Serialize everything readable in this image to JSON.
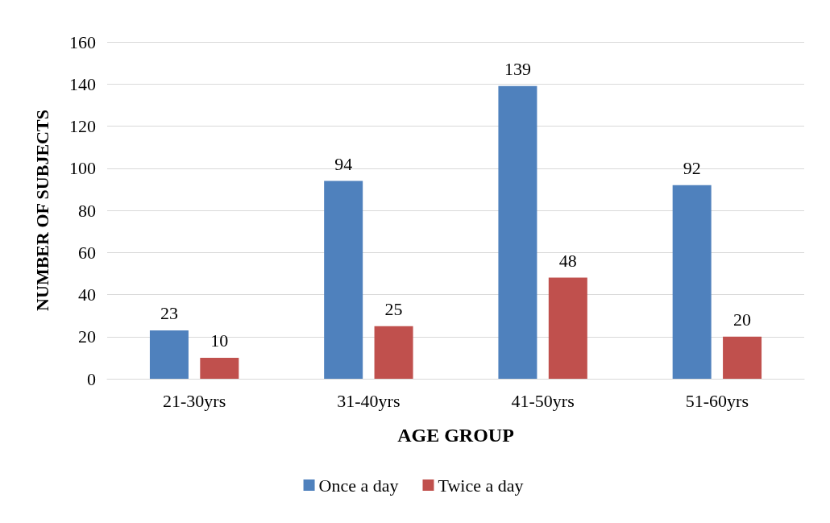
{
  "chart_data": {
    "type": "bar",
    "xlabel": "AGE GROUP",
    "ylabel": "NUMBER OF SUBJECTS",
    "categories": [
      "21-30yrs",
      "31-40yrs",
      "41-50yrs",
      "51-60yrs"
    ],
    "series": [
      {
        "name": "Once a day",
        "color": "#4f81bd",
        "values": [
          23,
          94,
          139,
          92
        ]
      },
      {
        "name": "Twice a day",
        "color": "#c0504d",
        "values": [
          10,
          25,
          48,
          20
        ]
      }
    ],
    "ylim": [
      0,
      160
    ],
    "yticks": [
      0,
      20,
      40,
      60,
      80,
      100,
      120,
      140,
      160
    ],
    "grid": "y",
    "legend": "bottom",
    "data_labels": true
  }
}
